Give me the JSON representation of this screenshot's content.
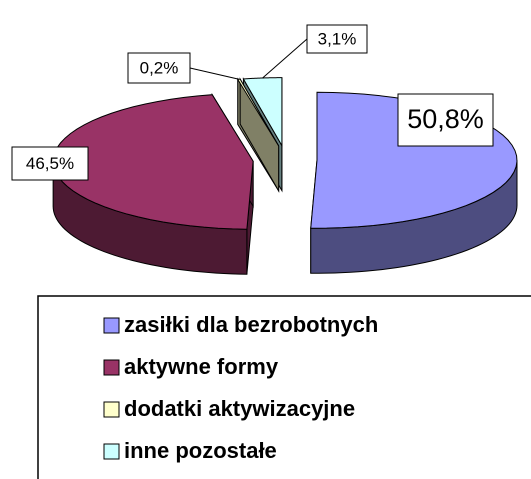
{
  "chart_data": {
    "type": "pie",
    "categories": [
      "zasiłki dla bezrobotnych",
      "aktywne formy",
      "dodatki aktywizacyjne",
      "inne pozostałe"
    ],
    "values": [
      50.8,
      46.5,
      0.2,
      3.1
    ],
    "value_labels": [
      "50,8%",
      "46,5%",
      "0,2%",
      "3,1%"
    ],
    "colors": [
      "#9999ff",
      "#993366",
      "#ffffcc",
      "#ccffff"
    ],
    "legend": "bottom"
  }
}
